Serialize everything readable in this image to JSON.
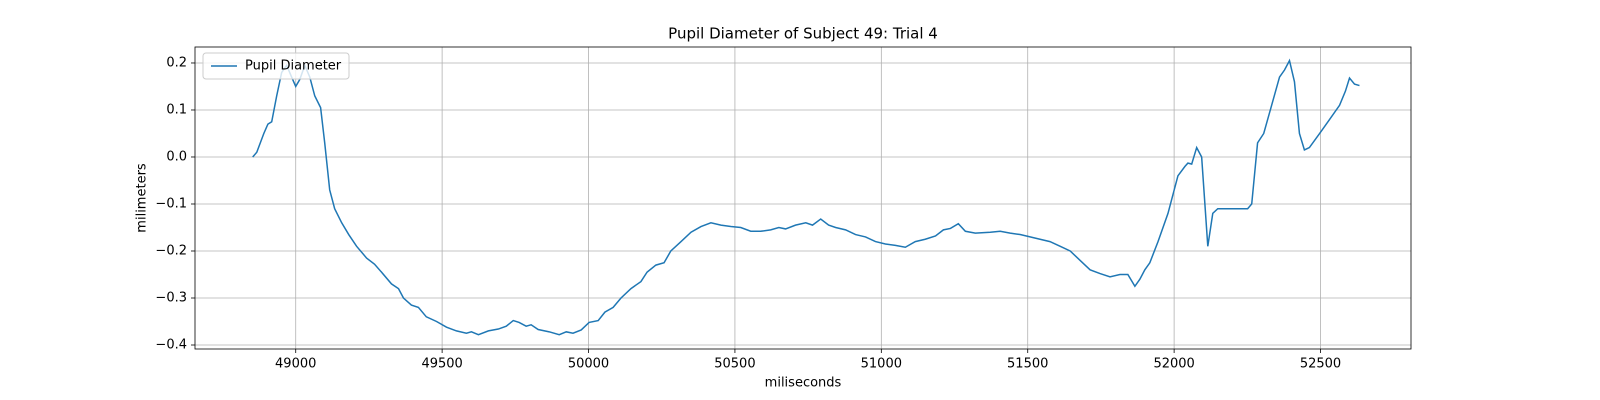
{
  "chart_data": {
    "type": "line",
    "title": "Pupil Diameter of Subject 49: Trial 4",
    "x_label": "miliseconds",
    "y_label": "milimeters",
    "xlim": [
      48656,
      52809
    ],
    "ylim": [
      -0.4085,
      0.234
    ],
    "xticks": [
      49000,
      49500,
      50000,
      50500,
      51000,
      51500,
      52000,
      52500
    ],
    "yticks": [
      0.2,
      0.1,
      {
        "value": 0,
        "label": "0.0"
      },
      {
        "value": -0.1,
        "label": "−0.1"
      },
      {
        "value": -0.2,
        "label": "−0.2"
      },
      {
        "value": -0.3,
        "label": "−0.3"
      },
      {
        "value": -0.4,
        "label": "−0.4"
      }
    ],
    "grid": true,
    "legend": "upper-left",
    "x": [
      48853,
      48867,
      48891,
      48905,
      48918,
      48935,
      48952,
      48969,
      48986,
      49000,
      49014,
      49031,
      49048,
      49065,
      49085,
      49099,
      49116,
      49133,
      49157,
      49181,
      49208,
      49242,
      49269,
      49293,
      49327,
      49351,
      49368,
      49395,
      49419,
      49446,
      49481,
      49515,
      49549,
      49583,
      49600,
      49624,
      49658,
      49692,
      49719,
      49743,
      49763,
      49787,
      49804,
      49828,
      49866,
      49900,
      49924,
      49947,
      49975,
      50002,
      50033,
      50056,
      50084,
      50111,
      50145,
      50179,
      50200,
      50230,
      50258,
      50281,
      50316,
      50350,
      50384,
      50418,
      50452,
      50486,
      50520,
      50554,
      50588,
      50622,
      50650,
      50673,
      50707,
      50742,
      50765,
      50793,
      50820,
      50844,
      50878,
      50912,
      50946,
      50980,
      51014,
      51048,
      51082,
      51116,
      51150,
      51185,
      51212,
      51236,
      51263,
      51287,
      51321,
      51372,
      51406,
      51440,
      51474,
      51508,
      51542,
      51576,
      51611,
      51645,
      51679,
      51713,
      51747,
      51781,
      51815,
      51842,
      51866,
      51883,
      51900,
      51917,
      51945,
      51979,
      52013,
      52037,
      52047,
      52060,
      52077,
      52094,
      52115,
      52132,
      52149,
      52190,
      52251,
      52265,
      52285,
      52306,
      52333,
      52360,
      52377,
      52394,
      52411,
      52428,
      52445,
      52462,
      52497,
      52531,
      52565,
      52585,
      52599,
      52616,
      52633
    ],
    "series": [
      {
        "name": "Pupil Diameter",
        "color": "#1f77b4",
        "values": [
          0.0,
          0.01,
          0.05,
          0.07,
          0.075,
          0.13,
          0.18,
          0.195,
          0.17,
          0.15,
          0.165,
          0.195,
          0.17,
          0.13,
          0.105,
          0.03,
          -0.07,
          -0.11,
          -0.14,
          -0.165,
          -0.19,
          -0.215,
          -0.228,
          -0.245,
          -0.27,
          -0.28,
          -0.3,
          -0.315,
          -0.32,
          -0.34,
          -0.35,
          -0.362,
          -0.37,
          -0.375,
          -0.372,
          -0.378,
          -0.37,
          -0.366,
          -0.36,
          -0.348,
          -0.352,
          -0.36,
          -0.357,
          -0.367,
          -0.372,
          -0.378,
          -0.372,
          -0.375,
          -0.368,
          -0.352,
          -0.348,
          -0.33,
          -0.32,
          -0.3,
          -0.28,
          -0.265,
          -0.245,
          -0.23,
          -0.225,
          -0.2,
          -0.18,
          -0.16,
          -0.148,
          -0.14,
          -0.145,
          -0.148,
          -0.15,
          -0.158,
          -0.158,
          -0.155,
          -0.15,
          -0.153,
          -0.145,
          -0.14,
          -0.145,
          -0.132,
          -0.145,
          -0.15,
          -0.155,
          -0.165,
          -0.17,
          -0.18,
          -0.185,
          -0.188,
          -0.192,
          -0.18,
          -0.175,
          -0.168,
          -0.155,
          -0.152,
          -0.142,
          -0.158,
          -0.162,
          -0.16,
          -0.158,
          -0.162,
          -0.165,
          -0.17,
          -0.175,
          -0.18,
          -0.19,
          -0.2,
          -0.22,
          -0.24,
          -0.248,
          -0.255,
          -0.25,
          -0.25,
          -0.275,
          -0.26,
          -0.24,
          -0.225,
          -0.18,
          -0.12,
          -0.04,
          -0.02,
          -0.013,
          -0.015,
          0.02,
          0.0,
          -0.19,
          -0.12,
          -0.11,
          -0.11,
          -0.11,
          -0.1,
          0.03,
          0.05,
          0.11,
          0.17,
          0.185,
          0.205,
          0.16,
          0.05,
          0.015,
          0.02,
          0.05,
          0.08,
          0.11,
          0.14,
          0.168,
          0.155,
          0.152
        ]
      }
    ]
  }
}
